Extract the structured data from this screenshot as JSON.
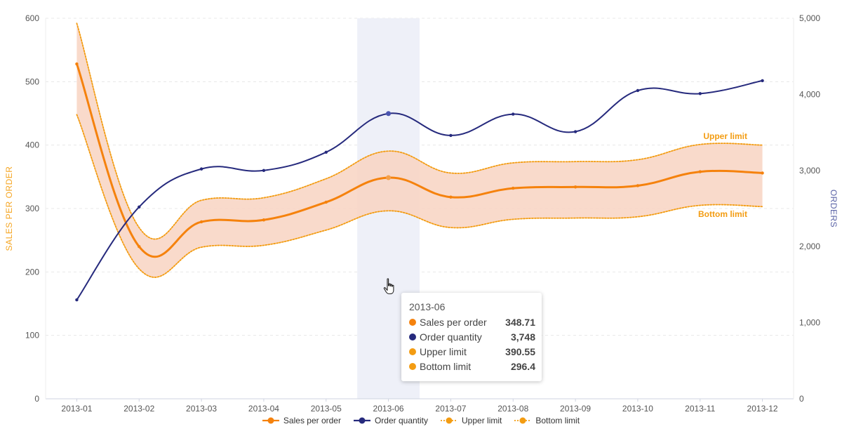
{
  "chart_data": {
    "type": "line",
    "categories": [
      "2013-01",
      "2013-02",
      "2013-03",
      "2013-04",
      "2013-05",
      "2013-06",
      "2013-07",
      "2013-08",
      "2013-09",
      "2013-10",
      "2013-11",
      "2013-12"
    ],
    "series": [
      {
        "name": "Sales per order",
        "axis": "left",
        "color": "#f5820d",
        "values": [
          528,
          240,
          279,
          282,
          310,
          348.71,
          318,
          332,
          334,
          336,
          358,
          356
        ]
      },
      {
        "name": "Order quantity",
        "axis": "right",
        "color": "#262a7d",
        "values": [
          1300,
          2520,
          3020,
          3000,
          3240,
          3748,
          3460,
          3740,
          3510,
          4050,
          4010,
          4180
        ]
      },
      {
        "name": "Upper limit",
        "axis": "left",
        "color": "#f39c12",
        "style": "dotted",
        "values": [
          592,
          270,
          313,
          317,
          347,
          390.55,
          356,
          372,
          374,
          377,
          401,
          400
        ]
      },
      {
        "name": "Bottom limit",
        "axis": "left",
        "color": "#f39c12",
        "style": "dotted",
        "values": [
          448,
          205,
          239,
          242,
          266,
          296.4,
          270,
          283,
          285,
          287,
          305,
          303
        ]
      }
    ],
    "y_left": {
      "label": "SALES PER ORDER",
      "range": [
        0,
        600
      ],
      "ticks": [
        0,
        100,
        200,
        300,
        400,
        500,
        600
      ]
    },
    "y_right": {
      "label": "ORDERS",
      "range": [
        0,
        5000
      ],
      "ticks": [
        "0",
        "1,000",
        "2,000",
        "3,000",
        "4,000",
        "5,000"
      ]
    },
    "annotations": [
      {
        "text": "Upper limit",
        "series": "Upper limit"
      },
      {
        "text": "Bottom limit",
        "series": "Bottom limit"
      }
    ],
    "highlight_category": "2013-06",
    "band_color": "#f8d4c2",
    "highlight_color": "#eef0f8",
    "legend_position": "bottom-center",
    "grid": "horizontal dashed"
  },
  "tooltip": {
    "title": "2013-06",
    "rows": [
      {
        "label": "Sales per order",
        "value": "348.71",
        "color": "#f5820d"
      },
      {
        "label": "Order quantity",
        "value": "3,748",
        "color": "#262a7d"
      },
      {
        "label": "Upper limit",
        "value": "390.55",
        "color": "#f39c12"
      },
      {
        "label": "Bottom limit",
        "value": "296.4",
        "color": "#f39c12"
      }
    ]
  },
  "legend": [
    {
      "label": "Sales per order",
      "color": "#f5820d",
      "dotted": false
    },
    {
      "label": "Order quantity",
      "color": "#262a7d",
      "dotted": false
    },
    {
      "label": "Upper limit",
      "color": "#f39c12",
      "dotted": true
    },
    {
      "label": "Bottom limit",
      "color": "#f39c12",
      "dotted": true
    }
  ]
}
